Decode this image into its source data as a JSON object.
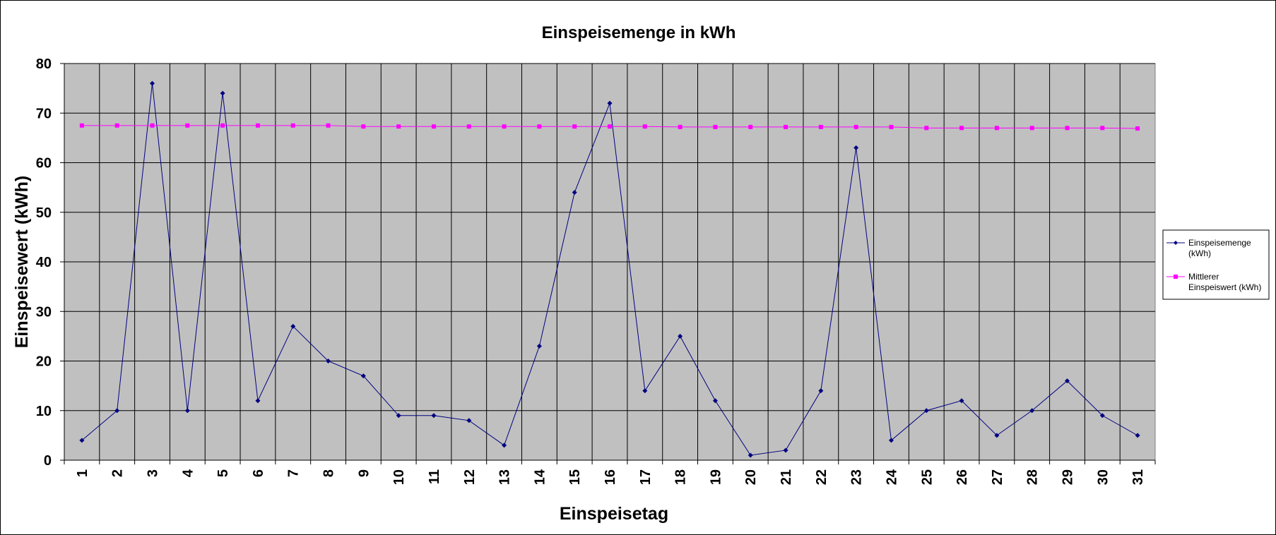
{
  "chart_data": {
    "type": "line",
    "title": "Einspeisemenge in kWh",
    "xlabel": "Einspeisetag",
    "ylabel": "Einspeisewert  (kWh)",
    "ylim": [
      0,
      80
    ],
    "yticks": [
      "0",
      "10",
      "20",
      "30",
      "40",
      "50",
      "60",
      "70",
      "80"
    ],
    "grid": true,
    "legend_position": "right",
    "plot_background": "#c0c0c0",
    "categories": [
      "1",
      "2",
      "3",
      "4",
      "5",
      "6",
      "7",
      "8",
      "9",
      "10",
      "11",
      "12",
      "13",
      "14",
      "15",
      "16",
      "17",
      "18",
      "19",
      "20",
      "21",
      "22",
      "23",
      "24",
      "25",
      "26",
      "27",
      "28",
      "29",
      "30",
      "31"
    ],
    "series": [
      {
        "name": "Einspeisemenge (kWh)",
        "legend_lines": [
          "Einspeisemenge",
          "(kWh)"
        ],
        "color": "#000080",
        "marker": "diamond",
        "values": [
          4,
          10,
          76,
          10,
          74,
          12,
          27,
          20,
          17,
          9,
          9,
          8,
          3,
          23,
          54,
          72,
          14,
          25,
          12,
          1,
          2,
          14,
          63,
          4,
          10,
          12,
          5,
          10,
          16,
          9,
          5
        ]
      },
      {
        "name": "Mittlerer Einspeiswert (kWh)",
        "legend_lines": [
          "Mittlerer",
          "Einspeiswert (kWh)"
        ],
        "color": "#ff00ff",
        "marker": "square",
        "values": [
          67.5,
          67.5,
          67.5,
          67.5,
          67.5,
          67.5,
          67.5,
          67.5,
          67.3,
          67.3,
          67.3,
          67.3,
          67.3,
          67.3,
          67.3,
          67.3,
          67.3,
          67.2,
          67.2,
          67.2,
          67.2,
          67.2,
          67.2,
          67.2,
          67.0,
          67.0,
          67.0,
          67.0,
          67.0,
          67.0,
          66.9
        ]
      }
    ]
  }
}
